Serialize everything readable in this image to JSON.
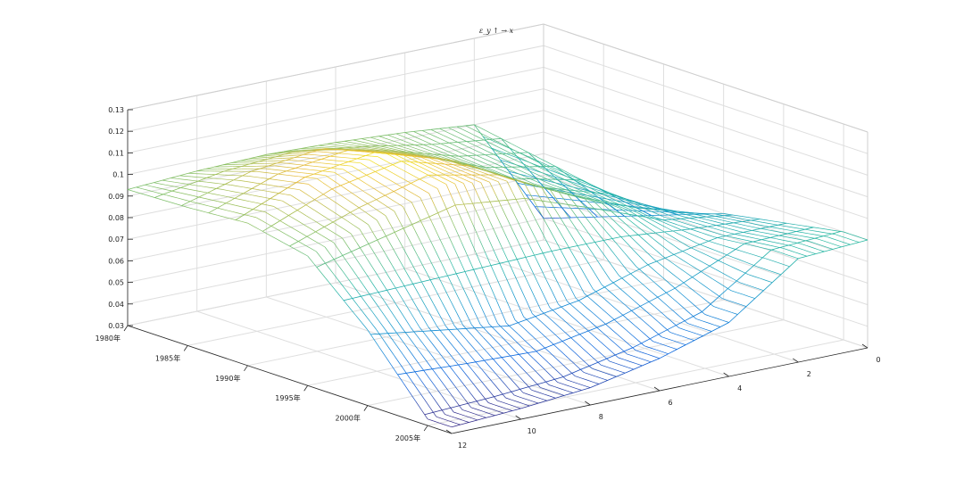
{
  "chart_data": {
    "type": "surface-mesh",
    "title": "ε_y ↑ → x",
    "xlabel": "",
    "ylabel": "",
    "zlabel": "",
    "zlim": [
      0.03,
      0.13
    ],
    "z_ticks": [
      "0.03",
      "0.04",
      "0.05",
      "0.06",
      "0.07",
      "0.08",
      "0.09",
      "0.1",
      "0.11",
      "0.12",
      "0.13"
    ],
    "year_ticks": [
      "1980年",
      "1985年",
      "1990年",
      "1995年",
      "2000年",
      "2005年"
    ],
    "year_range": [
      1980,
      2007
    ],
    "horizon_ticks": [
      "0",
      "2",
      "4",
      "6",
      "8",
      "10",
      "12"
    ],
    "horizon_range": [
      0,
      12
    ],
    "colormap": "parula",
    "grid": true,
    "surface_samples": {
      "horizons": [
        0,
        2,
        4,
        6,
        8,
        10,
        12
      ],
      "years": [
        1980,
        1985,
        1990,
        1995,
        2000,
        2005
      ],
      "z": [
        [
          0.04,
          0.05,
          0.06,
          0.07,
          0.075,
          0.08
        ],
        [
          0.09,
          0.085,
          0.08,
          0.075,
          0.075,
          0.078
        ],
        [
          0.093,
          0.09,
          0.088,
          0.09,
          0.07,
          0.055
        ],
        [
          0.095,
          0.1,
          0.105,
          0.105,
          0.06,
          0.045
        ],
        [
          0.096,
          0.108,
          0.115,
          0.11,
          0.055,
          0.038
        ],
        [
          0.095,
          0.104,
          0.11,
          0.1,
          0.06,
          0.035
        ],
        [
          0.093,
          0.094,
          0.096,
          0.09,
          0.065,
          0.033
        ]
      ]
    }
  }
}
